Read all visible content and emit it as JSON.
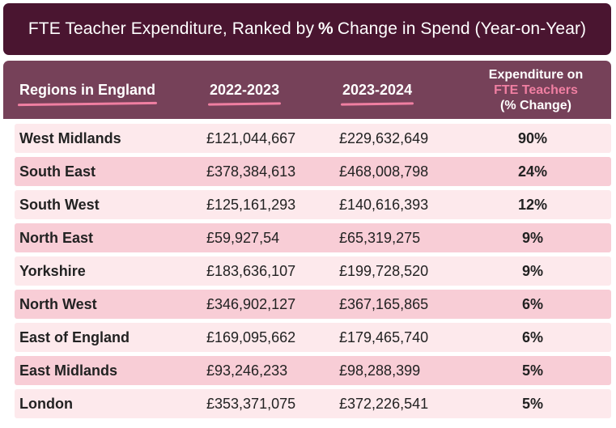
{
  "title": {
    "before": "FTE Teacher Expenditure, Ranked by",
    "bold": "%",
    "after": "Change in Spend (Year-on-Year)"
  },
  "columns": {
    "region": "Regions in England",
    "year1": "2022-2023",
    "year2": "2023-2024",
    "change_line1": "Expenditure on",
    "change_line2": "FTE Teachers",
    "change_line3": "(% Change)"
  },
  "rows": [
    {
      "region": "West Midlands",
      "y1": "£121,044,667",
      "y2": "£229,632,649",
      "change": "90%"
    },
    {
      "region": "South East",
      "y1": "£378,384,613",
      "y2": "£468,008,798",
      "change": "24%"
    },
    {
      "region": "South West",
      "y1": "£125,161,293",
      "y2": "£140,616,393",
      "change": "12%"
    },
    {
      "region": "North East",
      "y1": "£59,927,54",
      "y2": "£65,319,275",
      "change": "9%"
    },
    {
      "region": "Yorkshire",
      "y1": "£183,636,107",
      "y2": "£199,728,520",
      "change": "9%"
    },
    {
      "region": "North West",
      "y1": "£346,902,127",
      "y2": "£367,165,865",
      "change": "6%"
    },
    {
      "region": "East of England",
      "y1": "£169,095,662",
      "y2": "£179,465,740",
      "change": "6%"
    },
    {
      "region": "East Midlands",
      "y1": "£93,246,233",
      "y2": "£98,288,399",
      "change": "5%"
    },
    {
      "region": "London",
      "y1": "£353,371,075",
      "y2": "£372,226,541",
      "change": "5%"
    }
  ],
  "colors": {
    "title_bg": "#4a1530",
    "header_bg": "#764159",
    "accent_pink": "#f07fa2",
    "row_light": "#fde9ec",
    "row_dark": "#f8cdd6"
  }
}
